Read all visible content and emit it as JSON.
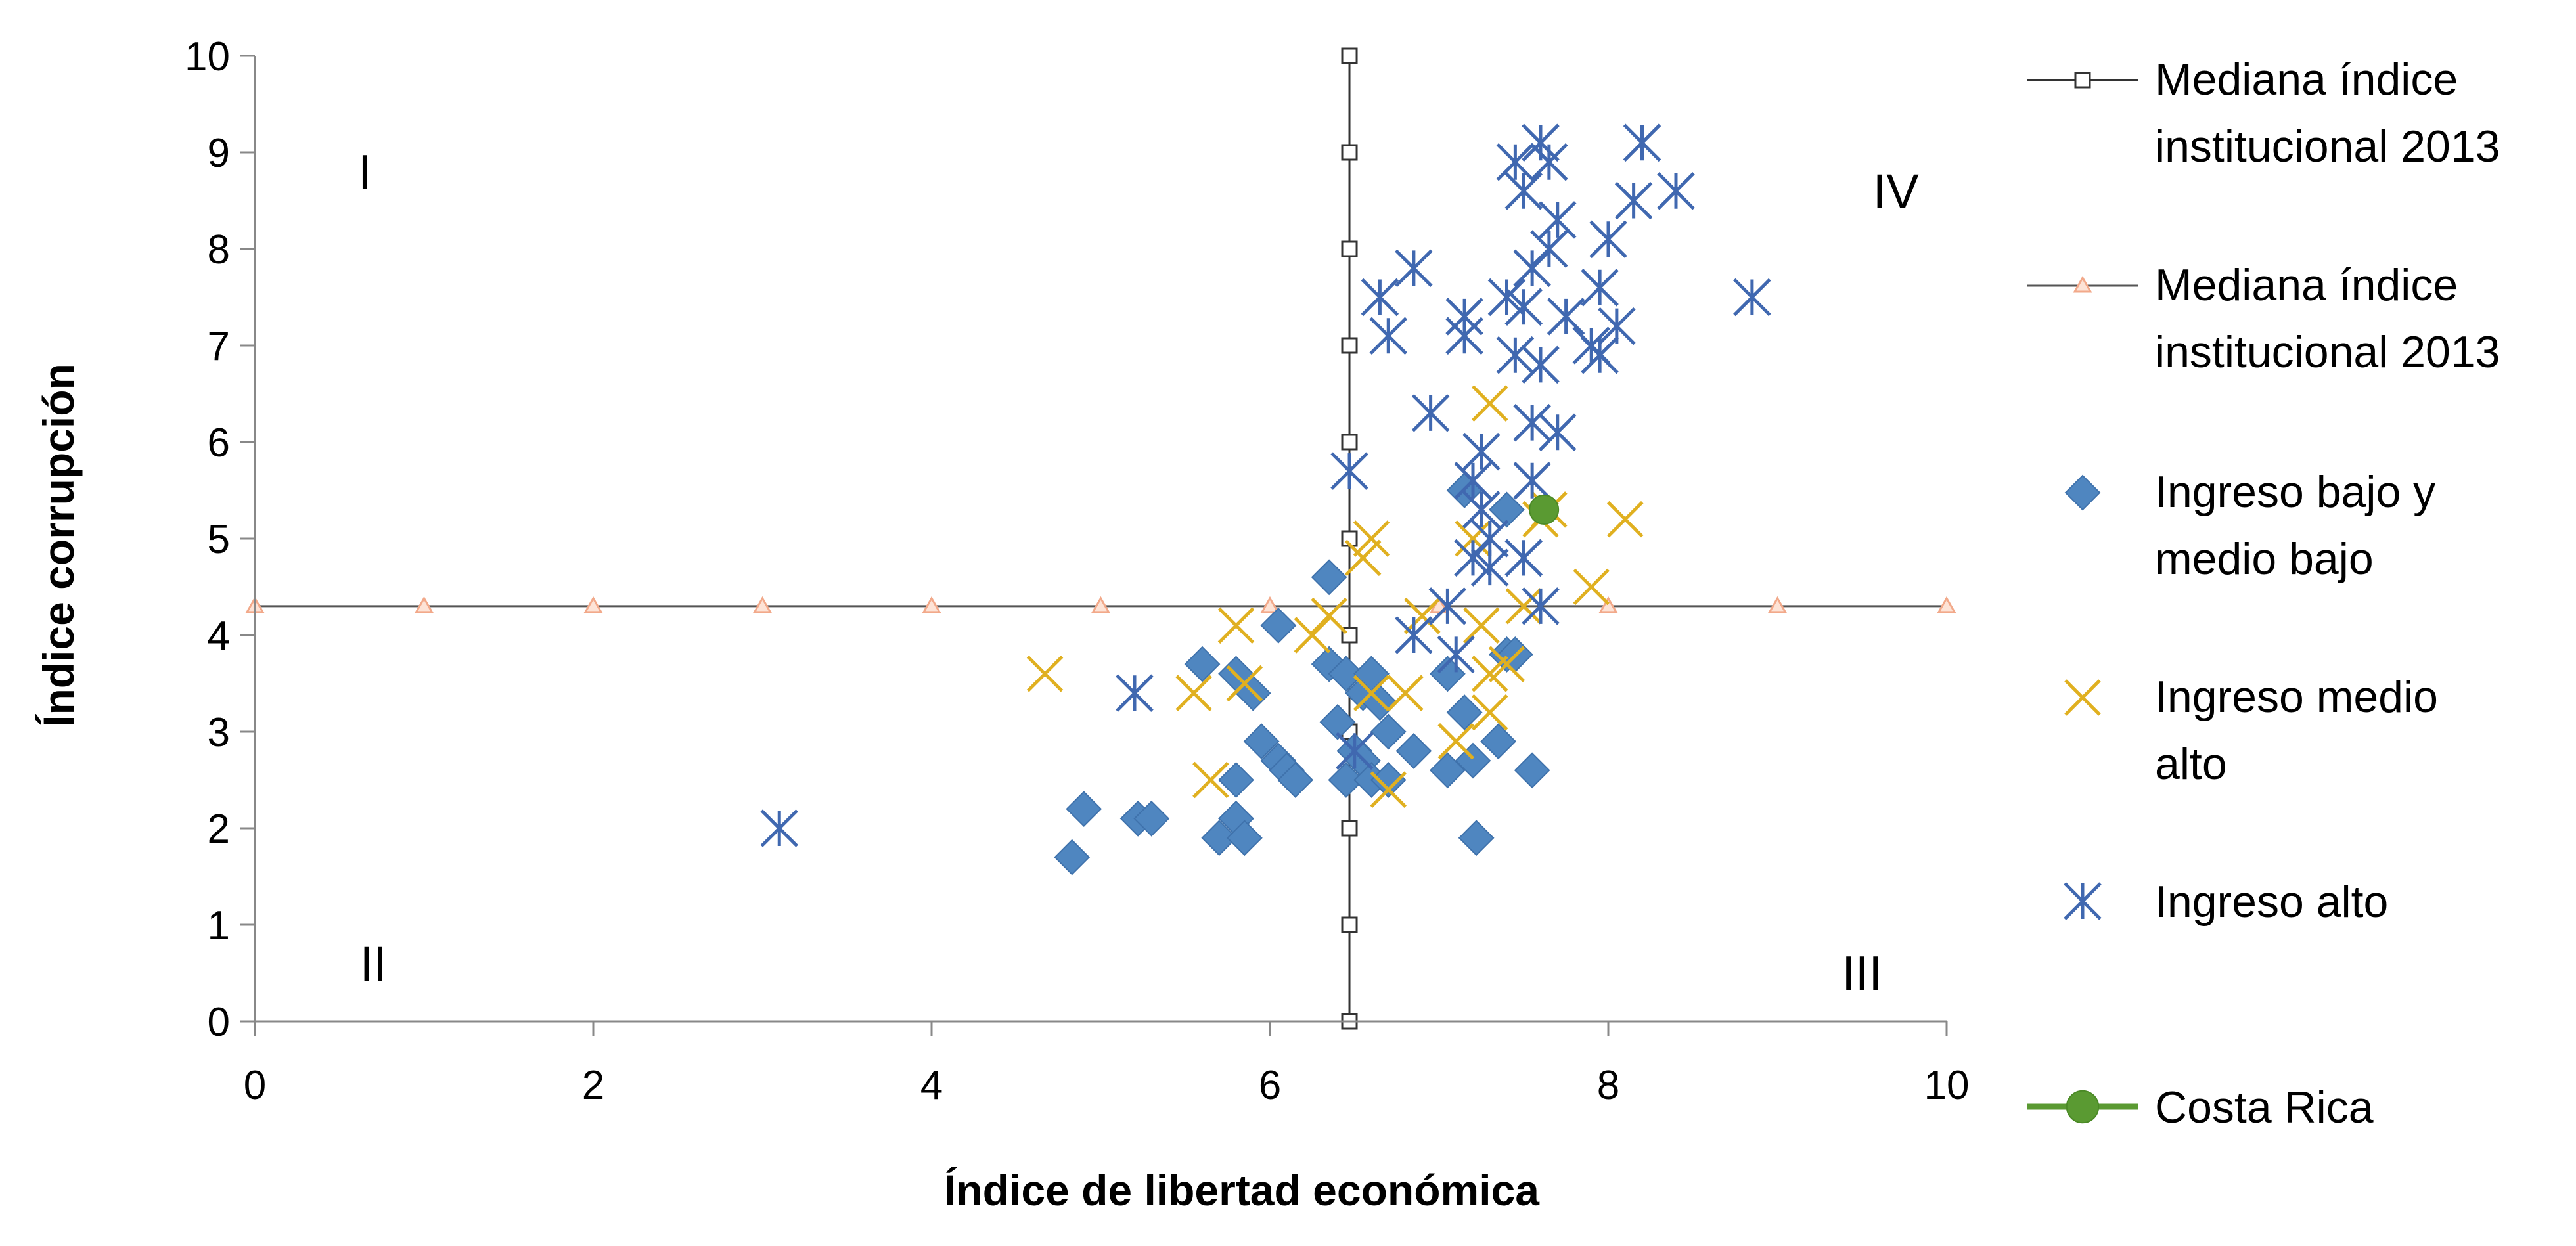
{
  "chart_data": {
    "type": "scatter",
    "title": "",
    "xlabel": "Índice de libertad económica",
    "ylabel": "Índice corrupción",
    "xlim": [
      0,
      10
    ],
    "ylim": [
      0,
      10
    ],
    "xticks": [
      "0",
      "2",
      "4",
      "6",
      "8",
      "10"
    ],
    "yticks": [
      "0",
      "1",
      "2",
      "3",
      "4",
      "5",
      "6",
      "7",
      "8",
      "9",
      "10"
    ],
    "grid": false,
    "legend_position": "right",
    "quadrant_labels": [
      {
        "text": "I",
        "x": 0.65,
        "y": 8.8
      },
      {
        "text": "II",
        "x": 0.7,
        "y": 0.6
      },
      {
        "text": "III",
        "x": 9.5,
        "y": 0.5
      },
      {
        "text": "IV",
        "x": 9.7,
        "y": 8.6
      }
    ],
    "reference_lines": [
      {
        "name": "Mediana índice institucional 2013",
        "orientation": "vertical",
        "value": 6.47,
        "marker_values": [
          0,
          1,
          2,
          3,
          4,
          5,
          6,
          7,
          8,
          9,
          10
        ],
        "color": "#1a1a1a"
      },
      {
        "name": "Mediana índice institucional 2013",
        "orientation": "horizontal",
        "value": 4.3,
        "marker_values": [
          0,
          1,
          2,
          3,
          4,
          5,
          6,
          7,
          8,
          9,
          10
        ],
        "color": "#f2a98a"
      }
    ],
    "series": [
      {
        "name": "Ingreso bajo y medio bajo",
        "marker": "diamond",
        "color": "#4f86c0",
        "points": [
          [
            4.83,
            1.7
          ],
          [
            4.9,
            2.2
          ],
          [
            5.22,
            2.1
          ],
          [
            5.3,
            2.1
          ],
          [
            5.6,
            3.7
          ],
          [
            5.7,
            1.9
          ],
          [
            5.8,
            2.1
          ],
          [
            5.8,
            2.5
          ],
          [
            5.85,
            1.9
          ],
          [
            5.8,
            3.6
          ],
          [
            5.9,
            3.4
          ],
          [
            5.95,
            2.9
          ],
          [
            6.05,
            2.7
          ],
          [
            6.1,
            2.6
          ],
          [
            6.15,
            2.5
          ],
          [
            6.05,
            4.1
          ],
          [
            6.35,
            4.6
          ],
          [
            6.35,
            3.7
          ],
          [
            6.4,
            3.1
          ],
          [
            6.45,
            2.5
          ],
          [
            6.5,
            2.8
          ],
          [
            6.45,
            3.6
          ],
          [
            6.55,
            2.7
          ],
          [
            6.55,
            3.4
          ],
          [
            6.6,
            3.6
          ],
          [
            6.65,
            3.3
          ],
          [
            6.6,
            2.5
          ],
          [
            6.7,
            2.5
          ],
          [
            6.85,
            2.8
          ],
          [
            6.7,
            3.0
          ],
          [
            7.05,
            3.6
          ],
          [
            7.05,
            2.6
          ],
          [
            7.15,
            3.2
          ],
          [
            7.2,
            2.7
          ],
          [
            7.22,
            1.9
          ],
          [
            7.35,
            2.9
          ],
          [
            7.4,
            3.8
          ],
          [
            7.45,
            3.8
          ],
          [
            7.55,
            2.6
          ],
          [
            7.4,
            5.3
          ],
          [
            7.15,
            5.5
          ]
        ]
      },
      {
        "name": "Ingreso medio alto",
        "marker": "x",
        "color": "#e0b020",
        "points": [
          [
            4.67,
            3.6
          ],
          [
            5.55,
            3.4
          ],
          [
            5.65,
            2.5
          ],
          [
            5.8,
            4.1
          ],
          [
            5.85,
            3.5
          ],
          [
            6.25,
            4.0
          ],
          [
            6.35,
            4.2
          ],
          [
            6.55,
            4.8
          ],
          [
            6.6,
            5.0
          ],
          [
            6.6,
            3.4
          ],
          [
            6.7,
            2.4
          ],
          [
            6.8,
            3.4
          ],
          [
            6.9,
            4.2
          ],
          [
            7.1,
            2.9
          ],
          [
            7.2,
            5.0
          ],
          [
            7.25,
            4.1
          ],
          [
            7.3,
            3.6
          ],
          [
            7.3,
            3.2
          ],
          [
            7.3,
            6.4
          ],
          [
            7.4,
            3.7
          ],
          [
            7.5,
            4.3
          ],
          [
            7.65,
            5.3
          ],
          [
            7.9,
            4.5
          ],
          [
            8.1,
            5.2
          ],
          [
            7.6,
            5.2
          ]
        ]
      },
      {
        "name": "Ingreso alto",
        "marker": "asterisk",
        "color": "#4068b0",
        "points": [
          [
            3.1,
            2.0
          ],
          [
            5.2,
            3.4
          ],
          [
            6.47,
            5.7
          ],
          [
            6.5,
            2.8
          ],
          [
            6.65,
            7.5
          ],
          [
            6.7,
            7.1
          ],
          [
            6.85,
            4.0
          ],
          [
            6.85,
            7.8
          ],
          [
            6.95,
            6.3
          ],
          [
            7.05,
            4.3
          ],
          [
            7.1,
            3.8
          ],
          [
            7.15,
            7.3
          ],
          [
            7.15,
            7.1
          ],
          [
            7.2,
            4.8
          ],
          [
            7.2,
            5.6
          ],
          [
            7.25,
            5.9
          ],
          [
            7.25,
            5.3
          ],
          [
            7.3,
            5.0
          ],
          [
            7.3,
            4.7
          ],
          [
            7.4,
            7.5
          ],
          [
            7.45,
            6.9
          ],
          [
            7.45,
            8.9
          ],
          [
            7.5,
            8.6
          ],
          [
            7.5,
            7.4
          ],
          [
            7.55,
            7.8
          ],
          [
            7.55,
            6.2
          ],
          [
            7.55,
            5.6
          ],
          [
            7.6,
            6.8
          ],
          [
            7.6,
            4.3
          ],
          [
            7.6,
            9.1
          ],
          [
            7.65,
            8.9
          ],
          [
            7.65,
            8.0
          ],
          [
            7.7,
            8.3
          ],
          [
            7.7,
            6.1
          ],
          [
            7.75,
            7.3
          ],
          [
            7.9,
            7.0
          ],
          [
            7.95,
            6.9
          ],
          [
            7.95,
            7.6
          ],
          [
            8.0,
            8.1
          ],
          [
            8.05,
            7.2
          ],
          [
            8.15,
            8.5
          ],
          [
            8.2,
            9.1
          ],
          [
            8.4,
            8.6
          ],
          [
            8.85,
            7.5
          ],
          [
            7.5,
            4.8
          ],
          [
            7.5,
            4.8
          ]
        ]
      },
      {
        "name": "Costa Rica",
        "marker": "circle",
        "color": "#5a9a32",
        "points": [
          [
            7.62,
            5.3
          ]
        ]
      }
    ]
  }
}
